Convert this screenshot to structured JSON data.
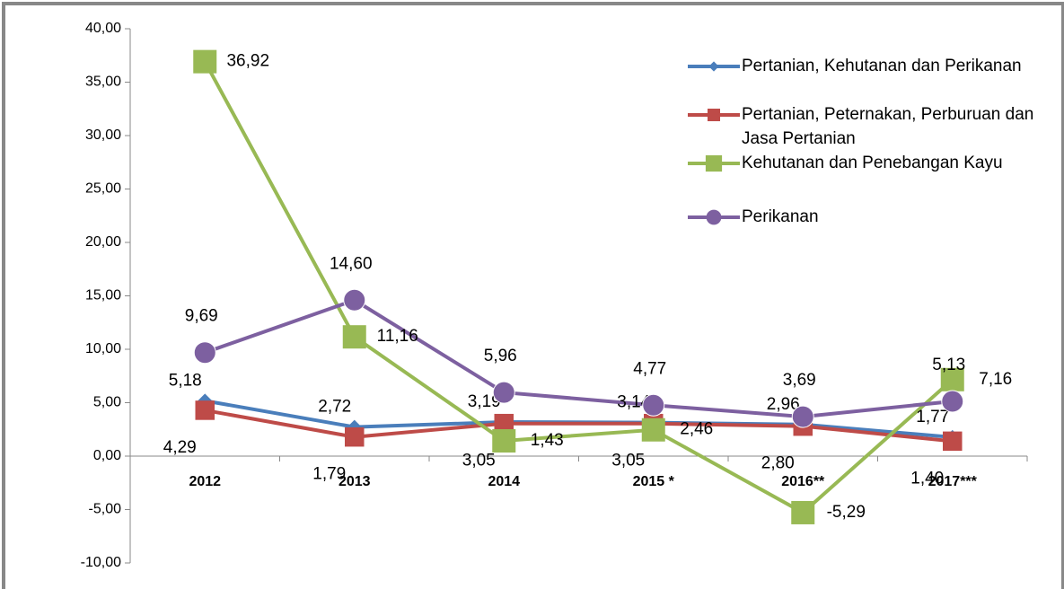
{
  "chart_data": {
    "type": "line",
    "categories": [
      "2012",
      "2013",
      "2014",
      "2015 *",
      "2016**",
      "2017***"
    ],
    "series": [
      {
        "name": "Pertanian, Kehutanan dan Perikanan",
        "color": "#4a7ebb",
        "marker": "diamond",
        "values": [
          5.18,
          2.72,
          3.19,
          3.14,
          2.96,
          1.77
        ],
        "value_labels": [
          "5,18",
          "2,72",
          "3,19",
          "3,14",
          "2,96",
          "1,77"
        ]
      },
      {
        "name": "Pertanian, Peternakan, Perburuan dan Jasa Pertanian",
        "color": "#be4b48",
        "marker": "square",
        "values": [
          4.29,
          1.79,
          3.05,
          3.05,
          2.8,
          1.4
        ],
        "value_labels": [
          "4,29",
          "1,79",
          "3,05",
          "3,05",
          "2,80",
          "1,40"
        ]
      },
      {
        "name": "Kehutanan dan Penebangan Kayu",
        "color": "#98b954",
        "marker": "square",
        "values": [
          36.92,
          11.16,
          1.43,
          2.46,
          -5.29,
          7.16
        ],
        "value_labels": [
          "36,92",
          "11,16",
          "1,43",
          "2,46",
          "-5,29",
          "7,16"
        ]
      },
      {
        "name": "Perikanan",
        "color": "#7d60a0",
        "marker": "circle",
        "values": [
          9.69,
          14.6,
          5.96,
          4.77,
          3.69,
          5.13
        ],
        "value_labels": [
          "9,69",
          "14,60",
          "5,96",
          "4,77",
          "3,69",
          "5,13"
        ]
      }
    ],
    "ylim": [
      -10,
      40
    ],
    "yticks": [
      {
        "value": -10,
        "label": "-10,00"
      },
      {
        "value": -5,
        "label": "-5,00"
      },
      {
        "value": 0,
        "label": "0,00"
      },
      {
        "value": 5,
        "label": "5,00"
      },
      {
        "value": 10,
        "label": "10,00"
      },
      {
        "value": 15,
        "label": "15,00"
      },
      {
        "value": 20,
        "label": "20,00"
      },
      {
        "value": 25,
        "label": "25,00"
      },
      {
        "value": 30,
        "label": "30,00"
      },
      {
        "value": 35,
        "label": "35,00"
      },
      {
        "value": 40,
        "label": "40,00"
      }
    ],
    "legend": "top-right"
  }
}
